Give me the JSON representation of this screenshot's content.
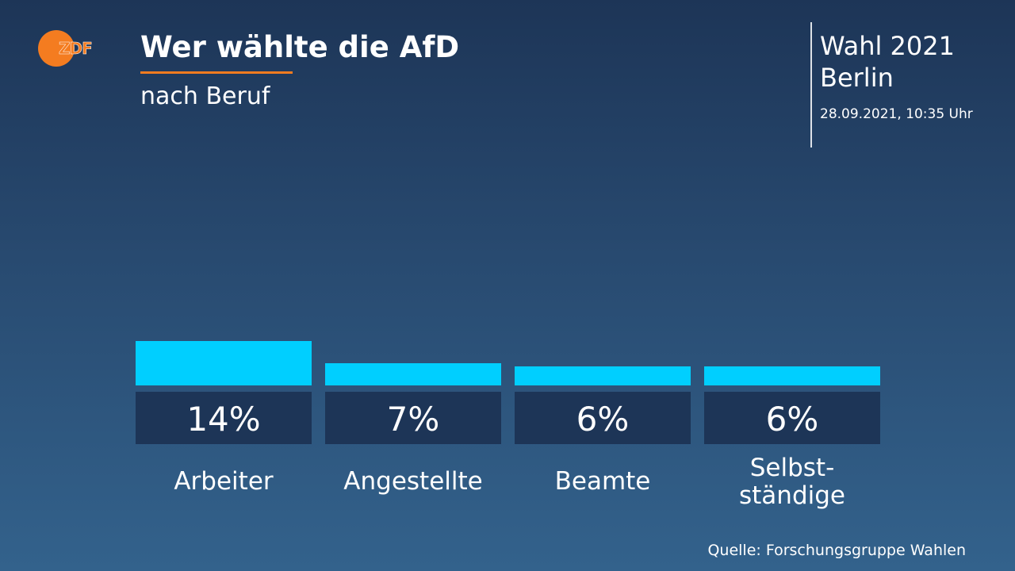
{
  "header": {
    "logo_text": "ZDF",
    "title": "Wer wählte die AfD",
    "subtitle": "nach Beruf"
  },
  "info": {
    "election_line1": "Wahl 2021",
    "election_line2": "Berlin",
    "timestamp": "28.09.2021, 10:35 Uhr"
  },
  "footer": {
    "source": "Quelle: Forschungsgruppe Wahlen"
  },
  "colors": {
    "bar": "#00cfff",
    "value_box": "#1d3557",
    "accent": "#f47c20"
  },
  "chart_data": {
    "type": "bar",
    "title": "Wer wählte die AfD",
    "subtitle": "nach Beruf",
    "categories": [
      "Arbeiter",
      "Angestellte",
      "Beamte",
      "Selbst-\nständige"
    ],
    "values": [
      14,
      7,
      6,
      6
    ],
    "value_labels": [
      "14%",
      "7%",
      "6%",
      "6%"
    ],
    "unit": "%",
    "ylim": [
      0,
      100
    ],
    "grid": false,
    "legend": "none"
  }
}
